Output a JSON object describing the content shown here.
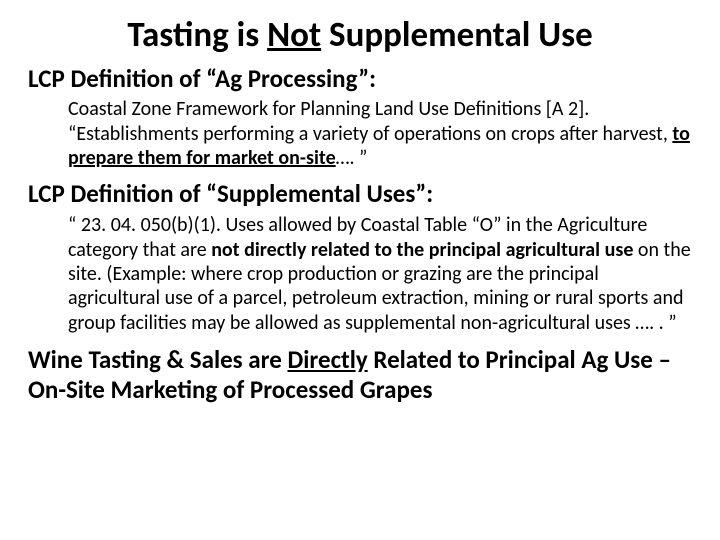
{
  "title_pre": "Tasting is ",
  "title_underline": "Not",
  "title_post": " Supplemental Use",
  "h2_ag": "LCP Definition of “Ag Processing”:",
  "ag_body_pre": "Coastal Zone Framework for Planning Land Use Definitions [A 2]. “Establishments performing a variety of operations on crops after harvest, ",
  "ag_body_bold": "to prepare them for market on-site",
  "ag_body_post": "…. ”",
  "h2_supp": "LCP Definition of “Supplemental Uses”:",
  "supp_body_pre": "“ 23. 04. 050(b)(1).  Uses allowed by Coastal Table “O” in the Agriculture category that are ",
  "supp_body_bold": "not directly related to the principal agricultural use",
  "supp_body_post": " on the site. (Example: where crop production or grazing are the principal agricultural use of a parcel, petroleum extraction, mining or rural sports and group facilities may be allowed as supplemental non-agricultural uses …. . ”",
  "closing_pre": "Wine Tasting & Sales are ",
  "closing_underline": "Directly",
  "closing_post": " Related to Principal Ag Use – On-Site Marketing of Processed Grapes",
  "colors": {
    "background": "#ffffff",
    "text": "#000000"
  },
  "typography": {
    "family": "Calibri",
    "title_size_pt": 32,
    "h2_size_pt": 24,
    "body_size_pt": 20,
    "closing_size_pt": 24
  }
}
